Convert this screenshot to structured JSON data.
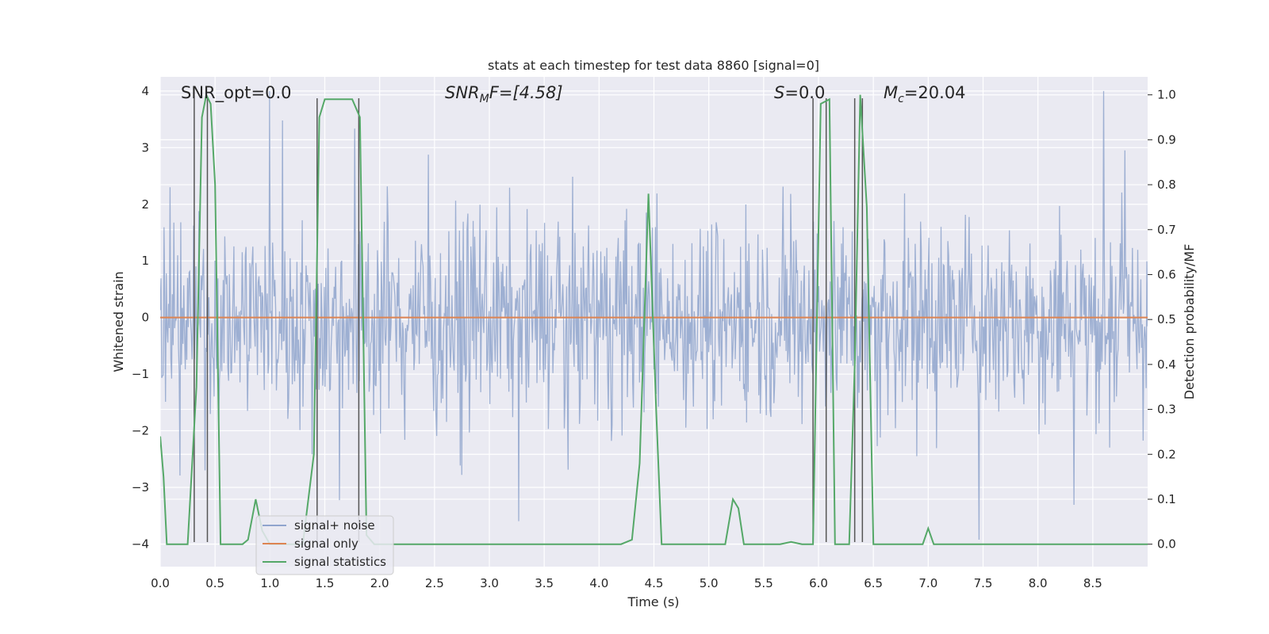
{
  "chart_data": {
    "type": "line",
    "title": "stats at each timestep for test data 8860 [signal=0]",
    "xlabel": "Time (s)",
    "ylabel_left": "Whitened strain",
    "ylabel_right": "Detection probability/MF",
    "xlim": [
      0.0,
      9.0
    ],
    "ylim_left": [
      -4.4,
      4.25
    ],
    "ylim_right": [
      -0.05,
      1.04
    ],
    "x_ticks": [
      "0.0",
      "0.5",
      "1.0",
      "1.5",
      "2.0",
      "2.5",
      "3.0",
      "3.5",
      "4.0",
      "4.5",
      "5.0",
      "5.5",
      "6.0",
      "6.5",
      "7.0",
      "7.5",
      "8.0",
      "8.5"
    ],
    "y_ticks_left": [
      "4",
      "3",
      "2",
      "1",
      "0",
      "−1",
      "−2",
      "−3",
      "−4"
    ],
    "y_ticks_right": [
      "1.0",
      "0.9",
      "0.8",
      "0.7",
      "0.6",
      "0.5",
      "0.4",
      "0.3",
      "0.2",
      "0.1",
      "0.0"
    ],
    "grid": true,
    "legend_position": "lower-left",
    "annotations": {
      "snr_opt": "SNR_opt=0.0",
      "snr_mf_main": "SNR",
      "snr_mf_sub": "M",
      "snr_mf_rest": "F=[4.58]",
      "s_italic": "S",
      "s_rest": "=0.0",
      "mc_italic": "M",
      "mc_sub": "c",
      "mc_rest": "=20.04"
    },
    "series": [
      {
        "name": "signal+ noise",
        "color": "#8fa4cd",
        "axis": "left",
        "noise_amplitude_typical": 1.6,
        "noise_amplitude_peak": 4.0
      },
      {
        "name": "signal only",
        "color": "#dd8452",
        "axis": "left",
        "x": [
          0.0,
          9.0
        ],
        "y": [
          0.0,
          0.0
        ]
      },
      {
        "name": "signal statistics",
        "color": "#55a868",
        "axis": "right",
        "x": [
          0.0,
          0.03,
          0.06,
          0.25,
          0.33,
          0.38,
          0.42,
          0.46,
          0.5,
          0.55,
          0.75,
          0.8,
          0.87,
          0.93,
          1.0,
          1.3,
          1.4,
          1.45,
          1.5,
          1.75,
          1.82,
          1.88,
          1.95,
          2.1,
          4.2,
          4.3,
          4.37,
          4.45,
          4.52,
          4.57,
          4.7,
          5.15,
          5.22,
          5.27,
          5.32,
          5.4,
          5.65,
          5.75,
          5.85,
          5.95,
          6.02,
          6.1,
          6.15,
          6.28,
          6.33,
          6.38,
          6.44,
          6.5,
          6.95,
          7.0,
          7.05,
          9.0
        ],
        "y": [
          0.24,
          0.15,
          0.0,
          0.0,
          0.35,
          0.95,
          1.0,
          0.98,
          0.8,
          0.0,
          0.0,
          0.01,
          0.1,
          0.03,
          0.0,
          0.0,
          0.2,
          0.95,
          0.99,
          0.99,
          0.95,
          0.02,
          0.0,
          0.0,
          0.0,
          0.01,
          0.18,
          0.78,
          0.3,
          0.0,
          0.0,
          0.0,
          0.1,
          0.08,
          0.0,
          0.0,
          0.0,
          0.005,
          0.0,
          0.0,
          0.98,
          0.99,
          0.0,
          0.0,
          0.4,
          1.0,
          0.75,
          0.0,
          0.0,
          0.035,
          0.0,
          0.0
        ]
      }
    ],
    "vertical_markers": [
      0.31,
      0.43,
      1.43,
      1.81,
      5.95,
      6.07,
      6.33,
      6.4
    ]
  }
}
